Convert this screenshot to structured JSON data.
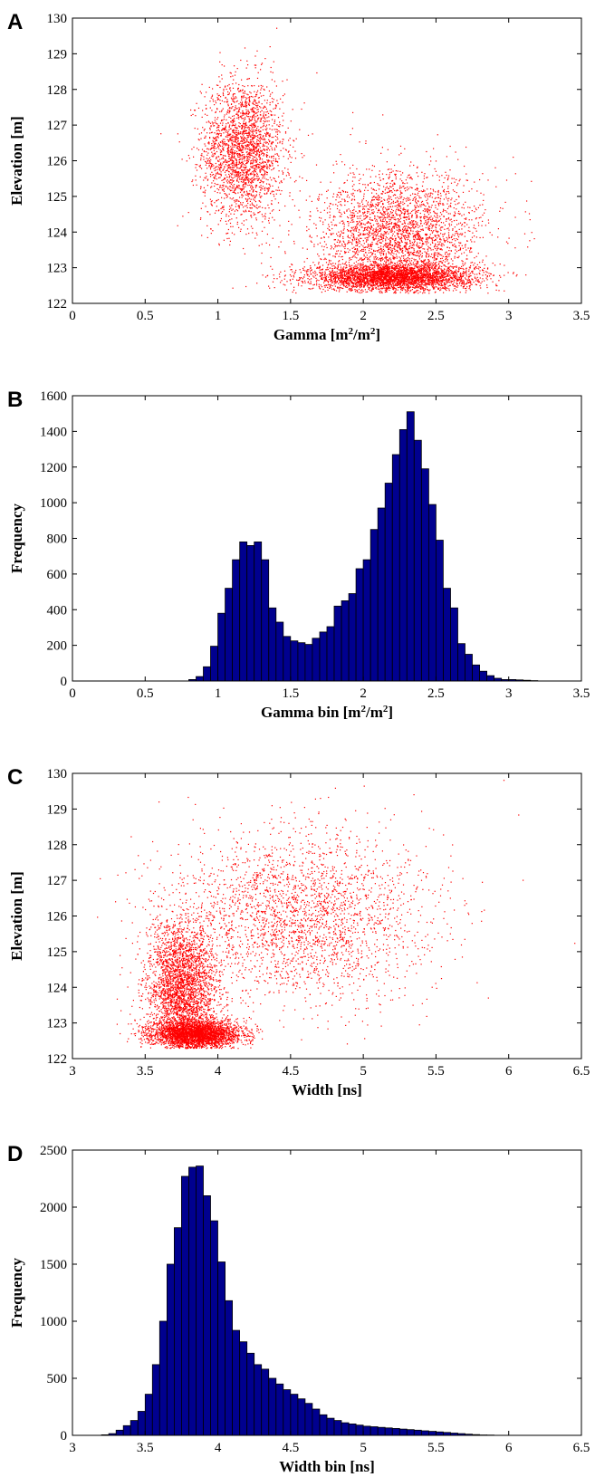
{
  "chart_data": [
    {
      "panel": "A",
      "type": "scatter",
      "xlabel": "Gamma [m²/m²]",
      "ylabel": "Elevation [m]",
      "xlim": [
        0,
        3.5
      ],
      "ylim": [
        122,
        130
      ],
      "xticks": [
        "0",
        "0.5",
        "1",
        "1.5",
        "2",
        "2.5",
        "3",
        "3.5"
      ],
      "yticks": [
        "122",
        "123",
        "124",
        "125",
        "126",
        "127",
        "128",
        "129",
        "130"
      ],
      "color": "#ff0000",
      "clusters": [
        {
          "x_center": 1.17,
          "x_spread": 0.14,
          "y_center": 126.3,
          "y_spread": 1.0,
          "n": 2400
        },
        {
          "x_center": 2.2,
          "x_spread": 0.28,
          "y_center": 122.75,
          "y_spread": 0.18,
          "n": 3200
        },
        {
          "x_center": 2.25,
          "x_spread": 0.28,
          "y_center": 123.9,
          "y_spread": 0.9,
          "n": 3000
        }
      ]
    },
    {
      "panel": "B",
      "type": "bar",
      "xlabel": "Gamma bin [m²/m²]",
      "ylabel": "Frequency",
      "xlim": [
        0,
        3.5
      ],
      "ylim": [
        0,
        1600
      ],
      "xticks": [
        "0",
        "0.5",
        "1",
        "1.5",
        "2",
        "2.5",
        "3",
        "3.5"
      ],
      "yticks": [
        "0",
        "200",
        "400",
        "600",
        "800",
        "1000",
        "1200",
        "1400",
        "1600"
      ],
      "bin_width": 0.05,
      "bin_start": 0.8,
      "values": [
        8,
        25,
        80,
        195,
        380,
        520,
        680,
        780,
        760,
        780,
        680,
        410,
        330,
        250,
        225,
        215,
        205,
        240,
        275,
        305,
        420,
        450,
        490,
        630,
        680,
        850,
        970,
        1110,
        1270,
        1410,
        1510,
        1350,
        1190,
        990,
        790,
        520,
        410,
        210,
        150,
        90,
        55,
        30,
        15,
        8,
        8,
        6,
        4,
        2
      ]
    },
    {
      "panel": "C",
      "type": "scatter",
      "xlabel": "Width [ns]",
      "ylabel": "Elevation [m]",
      "xlim": [
        3,
        6.5
      ],
      "ylim": [
        122,
        130
      ],
      "xticks": [
        "3",
        "3.5",
        "4",
        "4.5",
        "5",
        "5.5",
        "6",
        "6.5"
      ],
      "yticks": [
        "122",
        "123",
        "124",
        "125",
        "126",
        "127",
        "128",
        "129",
        "130"
      ],
      "color": "#ff0000",
      "clusters": [
        {
          "x_center": 3.85,
          "x_spread": 0.15,
          "y_center": 122.7,
          "y_spread": 0.2,
          "n": 3200
        },
        {
          "x_center": 3.75,
          "x_spread": 0.12,
          "y_center": 124.0,
          "y_spread": 0.9,
          "n": 2800
        },
        {
          "x_center": 4.55,
          "x_spread": 0.45,
          "y_center": 126.0,
          "y_spread": 1.2,
          "n": 2600
        }
      ]
    },
    {
      "panel": "D",
      "type": "bar",
      "xlabel": "Width bin [ns]",
      "ylabel": "Frequency",
      "xlim": [
        3,
        6.5
      ],
      "ylim": [
        0,
        2500
      ],
      "xticks": [
        "3",
        "3.5",
        "4",
        "4.5",
        "5",
        "5.5",
        "6",
        "6.5"
      ],
      "yticks": [
        "0",
        "500",
        "1000",
        "1500",
        "2000",
        "2500"
      ],
      "bin_width": 0.05,
      "bin_start": 3.2,
      "values": [
        5,
        15,
        45,
        85,
        130,
        210,
        360,
        620,
        1000,
        1500,
        1820,
        2270,
        2350,
        2360,
        2100,
        1880,
        1520,
        1180,
        920,
        820,
        720,
        620,
        580,
        500,
        450,
        400,
        360,
        320,
        280,
        230,
        180,
        150,
        130,
        110,
        100,
        90,
        80,
        75,
        70,
        65,
        60,
        55,
        50,
        45,
        40,
        35,
        30,
        25,
        20,
        15,
        10,
        6,
        3,
        2,
        1
      ]
    }
  ],
  "panels": [
    "A",
    "B",
    "C",
    "D"
  ]
}
